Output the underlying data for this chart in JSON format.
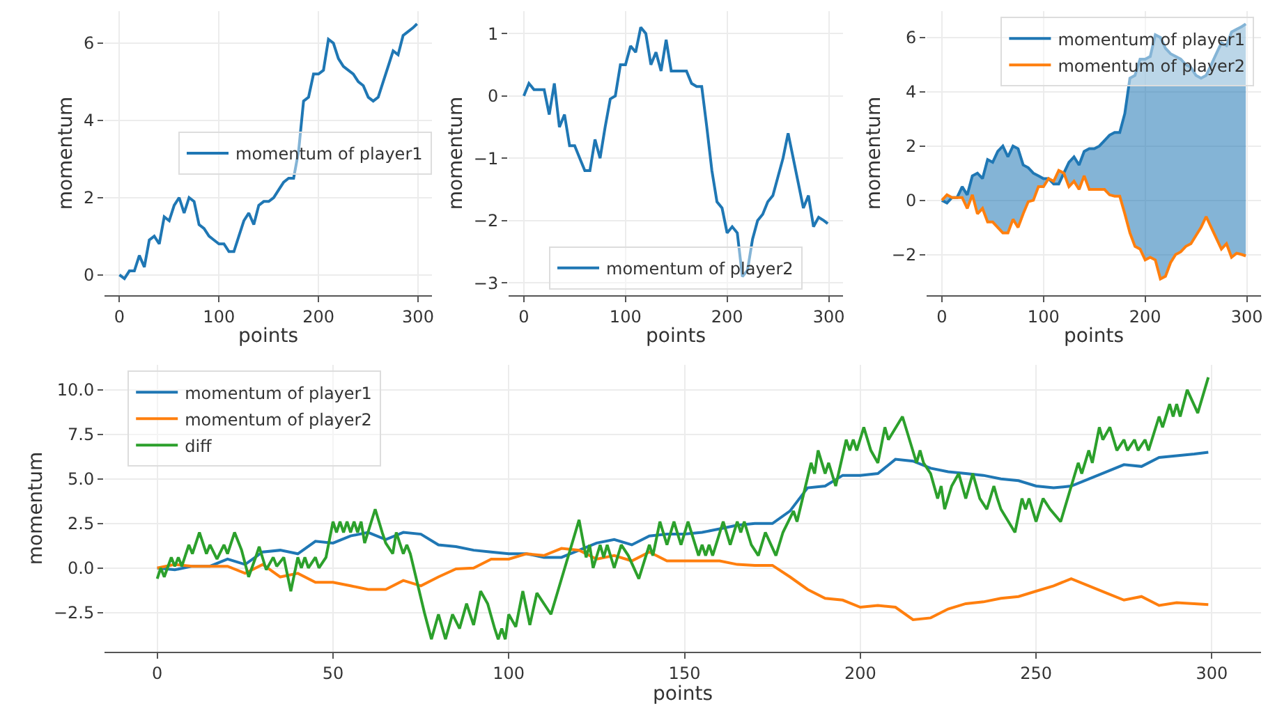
{
  "chart_data": [
    {
      "type": "line",
      "xlabel": "points",
      "ylabel": "momentum",
      "xlim": [
        -15,
        314
      ],
      "ylim": [
        -0.53,
        6.83
      ],
      "xticks": [
        0,
        100,
        200,
        300
      ],
      "yticks": [
        0,
        2,
        4,
        6
      ],
      "grid": true,
      "legend": "right",
      "x": [
        0,
        5,
        10,
        15,
        20,
        25,
        30,
        35,
        40,
        45,
        50,
        55,
        60,
        65,
        70,
        75,
        80,
        85,
        90,
        95,
        100,
        105,
        110,
        115,
        120,
        125,
        130,
        135,
        140,
        145,
        150,
        155,
        160,
        165,
        170,
        175,
        180,
        185,
        190,
        195,
        200,
        205,
        210,
        215,
        220,
        225,
        230,
        235,
        240,
        245,
        250,
        255,
        260,
        265,
        270,
        275,
        280,
        285,
        290,
        295,
        299
      ],
      "series": [
        {
          "name": "momentum of player1",
          "color": "#1f77b4",
          "values": [
            0,
            -0.1,
            0.1,
            0.1,
            0.5,
            0.2,
            0.9,
            1.0,
            0.8,
            1.5,
            1.4,
            1.8,
            2.0,
            1.6,
            2.0,
            1.9,
            1.3,
            1.2,
            1.0,
            0.9,
            0.8,
            0.8,
            0.6,
            0.6,
            1.0,
            1.4,
            1.6,
            1.3,
            1.8,
            1.9,
            1.9,
            2.0,
            2.2,
            2.4,
            2.5,
            2.5,
            3.2,
            4.5,
            4.6,
            5.2,
            5.2,
            5.3,
            6.1,
            6.0,
            5.6,
            5.4,
            5.3,
            5.2,
            5.0,
            4.9,
            4.6,
            4.5,
            4.6,
            5.0,
            5.4,
            5.8,
            5.7,
            6.2,
            6.3,
            6.4,
            6.5
          ]
        }
      ]
    },
    {
      "type": "line",
      "xlabel": "points",
      "ylabel": "momentum",
      "xlim": [
        -15,
        314
      ],
      "ylim": [
        -3.2,
        1.36
      ],
      "xticks": [
        0,
        100,
        200,
        300
      ],
      "yticks": [
        {
          "value": -3,
          "label": "−3"
        },
        {
          "value": -2,
          "label": "−2"
        },
        {
          "value": -1,
          "label": "−1"
        },
        0,
        1
      ],
      "grid": true,
      "legend": "bottom",
      "x": [
        0,
        5,
        10,
        15,
        20,
        25,
        30,
        35,
        40,
        45,
        50,
        55,
        60,
        65,
        70,
        75,
        80,
        85,
        90,
        95,
        100,
        105,
        110,
        115,
        120,
        125,
        130,
        135,
        140,
        145,
        150,
        155,
        160,
        165,
        170,
        175,
        180,
        185,
        190,
        195,
        200,
        205,
        210,
        215,
        220,
        225,
        230,
        235,
        240,
        245,
        250,
        255,
        260,
        265,
        270,
        275,
        280,
        285,
        290,
        295,
        299
      ],
      "series": [
        {
          "name": "momentum of player2",
          "color": "#1f77b4",
          "values": [
            0,
            0.2,
            0.1,
            0.1,
            0.1,
            -0.3,
            0.2,
            -0.5,
            -0.3,
            -0.8,
            -0.8,
            -1.0,
            -1.2,
            -1.2,
            -0.7,
            -1.0,
            -0.5,
            -0.05,
            0.0,
            0.5,
            0.5,
            0.8,
            0.7,
            1.1,
            1.0,
            0.5,
            0.7,
            0.4,
            0.9,
            0.4,
            0.4,
            0.4,
            0.4,
            0.2,
            0.15,
            0.15,
            -0.5,
            -1.2,
            -1.7,
            -1.8,
            -2.2,
            -2.1,
            -2.2,
            -2.9,
            -2.8,
            -2.3,
            -2.0,
            -1.9,
            -1.7,
            -1.6,
            -1.3,
            -1.0,
            -0.6,
            -1.0,
            -1.4,
            -1.8,
            -1.6,
            -2.1,
            -1.95,
            -2.0,
            -2.05
          ]
        }
      ]
    },
    {
      "type": "line",
      "xlabel": "points",
      "ylabel": "momentum",
      "xlim": [
        -15,
        314
      ],
      "ylim": [
        -3.5,
        6.97
      ],
      "xticks": [
        0,
        100,
        200,
        300
      ],
      "yticks": [
        {
          "value": -2,
          "label": "−2"
        },
        0,
        2,
        4,
        6
      ],
      "grid": true,
      "legend": "top right",
      "x": [
        0,
        5,
        10,
        15,
        20,
        25,
        30,
        35,
        40,
        45,
        50,
        55,
        60,
        65,
        70,
        75,
        80,
        85,
        90,
        95,
        100,
        105,
        110,
        115,
        120,
        125,
        130,
        135,
        140,
        145,
        150,
        155,
        160,
        165,
        170,
        175,
        180,
        185,
        190,
        195,
        200,
        205,
        210,
        215,
        220,
        225,
        230,
        235,
        240,
        245,
        250,
        255,
        260,
        265,
        270,
        275,
        280,
        285,
        290,
        295,
        299
      ],
      "series": [
        {
          "name": "momentum of player1",
          "color": "#1f77b4",
          "values": [
            0,
            -0.1,
            0.1,
            0.1,
            0.5,
            0.2,
            0.9,
            1.0,
            0.8,
            1.5,
            1.4,
            1.8,
            2.0,
            1.6,
            2.0,
            1.9,
            1.3,
            1.2,
            1.0,
            0.9,
            0.8,
            0.8,
            0.6,
            0.6,
            1.0,
            1.4,
            1.6,
            1.3,
            1.8,
            1.9,
            1.9,
            2.0,
            2.2,
            2.4,
            2.5,
            2.5,
            3.2,
            4.5,
            4.6,
            5.2,
            5.2,
            5.3,
            6.1,
            6.0,
            5.6,
            5.4,
            5.3,
            5.2,
            5.0,
            4.9,
            4.6,
            4.5,
            4.6,
            5.0,
            5.4,
            5.8,
            5.7,
            6.2,
            6.3,
            6.4,
            6.5
          ],
          "lower": [
            0,
            0.2,
            0.1,
            0.1,
            0.1,
            -0.3,
            0.2,
            -0.5,
            -0.3,
            -0.8,
            -0.8,
            -1.0,
            -1.2,
            -1.2,
            -0.7,
            -1.0,
            -0.5,
            -0.05,
            0.0,
            0.5,
            0.5,
            0.8,
            0.7,
            1.1,
            1.0,
            0.5,
            0.7,
            0.4,
            0.9,
            0.4,
            0.4,
            0.4,
            0.4,
            0.2,
            0.15,
            0.15,
            -0.5,
            -1.2,
            -1.7,
            -1.8,
            -2.2,
            -2.1,
            -2.2,
            -2.9,
            -2.8,
            -2.3,
            -2.0,
            -1.9,
            -1.7,
            -1.6,
            -1.3,
            -1.0,
            -0.6,
            -1.0,
            -1.4,
            -1.8,
            -1.6,
            -2.1,
            -1.95,
            -2.0,
            -2.05
          ],
          "upper": [
            0,
            -0.1,
            0.1,
            0.1,
            0.5,
            0.2,
            0.9,
            1.0,
            0.8,
            1.5,
            1.4,
            1.8,
            2.0,
            1.6,
            2.0,
            1.9,
            1.3,
            1.2,
            1.0,
            0.9,
            0.8,
            0.8,
            0.6,
            0.6,
            1.0,
            1.4,
            1.6,
            1.3,
            1.8,
            1.9,
            1.9,
            2.0,
            2.2,
            2.4,
            2.5,
            2.5,
            3.2,
            4.5,
            4.6,
            5.2,
            5.2,
            5.3,
            6.1,
            6.0,
            5.6,
            5.4,
            5.3,
            5.2,
            5.0,
            4.9,
            4.6,
            4.5,
            4.6,
            5.0,
            5.4,
            5.8,
            5.7,
            6.2,
            6.3,
            6.4,
            6.5
          ]
        },
        {
          "name": "momentum of player2",
          "color": "#ff7f0e",
          "values": [
            0,
            0.2,
            0.1,
            0.1,
            0.1,
            -0.3,
            0.2,
            -0.5,
            -0.3,
            -0.8,
            -0.8,
            -1.0,
            -1.2,
            -1.2,
            -0.7,
            -1.0,
            -0.5,
            -0.05,
            0.0,
            0.5,
            0.5,
            0.8,
            0.7,
            1.1,
            1.0,
            0.5,
            0.7,
            0.4,
            0.9,
            0.4,
            0.4,
            0.4,
            0.4,
            0.2,
            0.15,
            0.15,
            -0.5,
            -1.2,
            -1.7,
            -1.8,
            -2.2,
            -2.1,
            -2.2,
            -2.9,
            -2.8,
            -2.3,
            -2.0,
            -1.9,
            -1.7,
            -1.6,
            -1.3,
            -1.0,
            -0.6,
            -1.0,
            -1.4,
            -1.8,
            -1.6,
            -2.1,
            -1.95,
            -2.0,
            -2.05
          ]
        }
      ]
    },
    {
      "type": "line",
      "xlabel": "points",
      "ylabel": "momentum",
      "xlim": [
        -15,
        314
      ],
      "ylim": [
        -4.7,
        11.4
      ],
      "xticks": [
        0,
        50,
        100,
        150,
        200,
        250,
        300
      ],
      "yticks": [
        {
          "value": -2.5,
          "label": "−2.5"
        },
        {
          "value": 0,
          "label": "0.0"
        },
        {
          "value": 2.5,
          "label": "2.5"
        },
        {
          "value": 5,
          "label": "5.0"
        },
        {
          "value": 7.5,
          "label": "7.5"
        },
        {
          "value": 10,
          "label": "10.0"
        }
      ],
      "grid": true,
      "legend": "top left",
      "x": [
        0,
        5,
        10,
        15,
        20,
        25,
        30,
        35,
        40,
        45,
        50,
        55,
        60,
        65,
        70,
        75,
        80,
        85,
        90,
        95,
        100,
        105,
        110,
        115,
        120,
        125,
        130,
        135,
        140,
        145,
        150,
        155,
        160,
        165,
        170,
        175,
        180,
        185,
        190,
        195,
        200,
        205,
        210,
        215,
        220,
        225,
        230,
        235,
        240,
        245,
        250,
        255,
        260,
        265,
        270,
        275,
        280,
        285,
        290,
        295,
        299
      ],
      "series": [
        {
          "name": "momentum of player1",
          "color": "#1f77b4",
          "values": [
            0,
            -0.1,
            0.1,
            0.1,
            0.5,
            0.2,
            0.9,
            1.0,
            0.8,
            1.5,
            1.4,
            1.8,
            2.0,
            1.6,
            2.0,
            1.9,
            1.3,
            1.2,
            1.0,
            0.9,
            0.8,
            0.8,
            0.6,
            0.6,
            1.0,
            1.4,
            1.6,
            1.3,
            1.8,
            1.9,
            1.9,
            2.0,
            2.2,
            2.4,
            2.5,
            2.5,
            3.2,
            4.5,
            4.6,
            5.2,
            5.2,
            5.3,
            6.1,
            6.0,
            5.6,
            5.4,
            5.3,
            5.2,
            5.0,
            4.9,
            4.6,
            4.5,
            4.6,
            5.0,
            5.4,
            5.8,
            5.7,
            6.2,
            6.3,
            6.4,
            6.5
          ]
        },
        {
          "name": "momentum of player2",
          "color": "#ff7f0e",
          "values": [
            0,
            0.2,
            0.1,
            0.1,
            0.1,
            -0.3,
            0.2,
            -0.5,
            -0.3,
            -0.8,
            -0.8,
            -1.0,
            -1.2,
            -1.2,
            -0.7,
            -1.0,
            -0.5,
            -0.05,
            0.0,
            0.5,
            0.5,
            0.8,
            0.7,
            1.1,
            1.0,
            0.5,
            0.7,
            0.4,
            0.9,
            0.4,
            0.4,
            0.4,
            0.4,
            0.2,
            0.15,
            0.15,
            -0.5,
            -1.2,
            -1.7,
            -1.8,
            -2.2,
            -2.1,
            -2.2,
            -2.9,
            -2.8,
            -2.3,
            -2.0,
            -1.9,
            -1.7,
            -1.6,
            -1.3,
            -1.0,
            -0.6,
            -1.0,
            -1.4,
            -1.8,
            -1.6,
            -2.1,
            -1.95,
            -2.0,
            -2.05
          ]
        },
        {
          "name": "diff",
          "color": "#2ca02c",
          "x": [
            0,
            1,
            2,
            4,
            5,
            6,
            7,
            9,
            10,
            12,
            14,
            15,
            17,
            19,
            20,
            22,
            24,
            26,
            28,
            29,
            31,
            33,
            34,
            36,
            38,
            40,
            41,
            42,
            43,
            45,
            46,
            48,
            50,
            51,
            52,
            53,
            54,
            55,
            56,
            57,
            58,
            59,
            62,
            64,
            65,
            67,
            68,
            70,
            71,
            72,
            76,
            78,
            80,
            82,
            84,
            86,
            88,
            90,
            92,
            94,
            96,
            97,
            98,
            99,
            100,
            102,
            104,
            106,
            108,
            112,
            120,
            122,
            123,
            124,
            126,
            127,
            128,
            130,
            132,
            134,
            137,
            140,
            141,
            143,
            145,
            147,
            149,
            151,
            154,
            155,
            156,
            157,
            158,
            161,
            163,
            165,
            166,
            167,
            169,
            171,
            173,
            176,
            178,
            181,
            182,
            186,
            187,
            188,
            190,
            191,
            193,
            196,
            197,
            198,
            199,
            201,
            203,
            205,
            207,
            208,
            212,
            214,
            216,
            217,
            218,
            220,
            222,
            223,
            224,
            226,
            228,
            229,
            230,
            232,
            233,
            234,
            236,
            238,
            239,
            240,
            244,
            246,
            247,
            248,
            250,
            252,
            254,
            257,
            262,
            263,
            265,
            266,
            268,
            269,
            271,
            273,
            275,
            276,
            278,
            279,
            281,
            282,
            285,
            286,
            288,
            289,
            290,
            291,
            293,
            296,
            299
          ],
          "values": [
            -0.6,
            0,
            -0.5,
            0.6,
            0.1,
            0.6,
            0.1,
            1.3,
            0.8,
            2.0,
            0.8,
            1.3,
            0.5,
            1.3,
            0.8,
            2.0,
            1.0,
            -0.5,
            0.6,
            1.2,
            -0.1,
            0.6,
            0.1,
            0.6,
            -1.3,
            0.6,
            0,
            0.6,
            0,
            0.6,
            0,
            0.6,
            2.6,
            2.0,
            2.6,
            2.0,
            2.6,
            2.0,
            2.6,
            2.0,
            2.6,
            1.4,
            3.3,
            2.0,
            1.4,
            0.8,
            2.0,
            0.8,
            1.3,
            0.8,
            -2.5,
            -4.0,
            -2.6,
            -4.0,
            -2.6,
            -3.4,
            -2.0,
            -3.2,
            -1.3,
            -2.0,
            -3.4,
            -4.0,
            -3.4,
            -4.0,
            -2.6,
            -3.3,
            -1.3,
            -3.2,
            -1.4,
            -2.6,
            2.7,
            0.6,
            1.3,
            0,
            1.3,
            0.6,
            1.3,
            0,
            1.3,
            0.7,
            -0.6,
            1.3,
            0.7,
            2.6,
            1.3,
            2.6,
            1.3,
            2.6,
            0.7,
            1.3,
            0.7,
            1.3,
            0.7,
            2.6,
            1.3,
            2.6,
            2.0,
            2.6,
            1.3,
            0.7,
            2.0,
            0.7,
            2.0,
            3.2,
            2.6,
            5.9,
            5.3,
            6.6,
            5.3,
            5.9,
            4.6,
            7.2,
            6.6,
            7.2,
            6.6,
            7.9,
            6.6,
            5.9,
            7.9,
            7.2,
            8.5,
            7.2,
            5.9,
            6.6,
            5.9,
            5.3,
            3.9,
            4.6,
            3.3,
            4.6,
            5.3,
            4.6,
            3.9,
            5.3,
            4.6,
            3.9,
            3.3,
            4.6,
            3.9,
            3.3,
            2.0,
            3.9,
            3.3,
            3.9,
            2.6,
            3.9,
            3.3,
            2.6,
            5.9,
            5.3,
            6.6,
            5.9,
            7.9,
            7.2,
            7.9,
            6.6,
            7.2,
            6.6,
            7.2,
            6.6,
            7.2,
            6.6,
            8.5,
            7.9,
            9.2,
            8.5,
            9.2,
            8.5,
            10.0,
            8.7,
            10.7
          ]
        }
      ]
    }
  ]
}
